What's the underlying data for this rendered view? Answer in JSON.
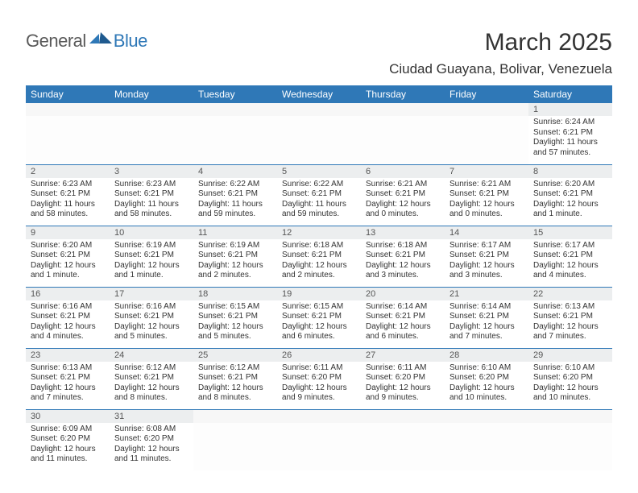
{
  "brand": {
    "part1": "General",
    "part2": "Blue"
  },
  "title": "March 2025",
  "location": "Ciudad Guayana, Bolivar, Venezuela",
  "colors": {
    "header_bg": "#2f78b7",
    "header_fg": "#ffffff",
    "daynum_bg": "#eceeef",
    "border": "#2f78b7",
    "logo_gray": "#5a5a5a",
    "logo_blue": "#2f78b7"
  },
  "weekdays": [
    "Sunday",
    "Monday",
    "Tuesday",
    "Wednesday",
    "Thursday",
    "Friday",
    "Saturday"
  ],
  "weeks": [
    [
      {
        "n": "",
        "empty": true
      },
      {
        "n": "",
        "empty": true
      },
      {
        "n": "",
        "empty": true
      },
      {
        "n": "",
        "empty": true
      },
      {
        "n": "",
        "empty": true
      },
      {
        "n": "",
        "empty": true
      },
      {
        "n": "1",
        "sr": "Sunrise: 6:24 AM",
        "ss": "Sunset: 6:21 PM",
        "dl": "Daylight: 11 hours and 57 minutes."
      }
    ],
    [
      {
        "n": "2",
        "sr": "Sunrise: 6:23 AM",
        "ss": "Sunset: 6:21 PM",
        "dl": "Daylight: 11 hours and 58 minutes."
      },
      {
        "n": "3",
        "sr": "Sunrise: 6:23 AM",
        "ss": "Sunset: 6:21 PM",
        "dl": "Daylight: 11 hours and 58 minutes."
      },
      {
        "n": "4",
        "sr": "Sunrise: 6:22 AM",
        "ss": "Sunset: 6:21 PM",
        "dl": "Daylight: 11 hours and 59 minutes."
      },
      {
        "n": "5",
        "sr": "Sunrise: 6:22 AM",
        "ss": "Sunset: 6:21 PM",
        "dl": "Daylight: 11 hours and 59 minutes."
      },
      {
        "n": "6",
        "sr": "Sunrise: 6:21 AM",
        "ss": "Sunset: 6:21 PM",
        "dl": "Daylight: 12 hours and 0 minutes."
      },
      {
        "n": "7",
        "sr": "Sunrise: 6:21 AM",
        "ss": "Sunset: 6:21 PM",
        "dl": "Daylight: 12 hours and 0 minutes."
      },
      {
        "n": "8",
        "sr": "Sunrise: 6:20 AM",
        "ss": "Sunset: 6:21 PM",
        "dl": "Daylight: 12 hours and 1 minute."
      }
    ],
    [
      {
        "n": "9",
        "sr": "Sunrise: 6:20 AM",
        "ss": "Sunset: 6:21 PM",
        "dl": "Daylight: 12 hours and 1 minute."
      },
      {
        "n": "10",
        "sr": "Sunrise: 6:19 AM",
        "ss": "Sunset: 6:21 PM",
        "dl": "Daylight: 12 hours and 1 minute."
      },
      {
        "n": "11",
        "sr": "Sunrise: 6:19 AM",
        "ss": "Sunset: 6:21 PM",
        "dl": "Daylight: 12 hours and 2 minutes."
      },
      {
        "n": "12",
        "sr": "Sunrise: 6:18 AM",
        "ss": "Sunset: 6:21 PM",
        "dl": "Daylight: 12 hours and 2 minutes."
      },
      {
        "n": "13",
        "sr": "Sunrise: 6:18 AM",
        "ss": "Sunset: 6:21 PM",
        "dl": "Daylight: 12 hours and 3 minutes."
      },
      {
        "n": "14",
        "sr": "Sunrise: 6:17 AM",
        "ss": "Sunset: 6:21 PM",
        "dl": "Daylight: 12 hours and 3 minutes."
      },
      {
        "n": "15",
        "sr": "Sunrise: 6:17 AM",
        "ss": "Sunset: 6:21 PM",
        "dl": "Daylight: 12 hours and 4 minutes."
      }
    ],
    [
      {
        "n": "16",
        "sr": "Sunrise: 6:16 AM",
        "ss": "Sunset: 6:21 PM",
        "dl": "Daylight: 12 hours and 4 minutes."
      },
      {
        "n": "17",
        "sr": "Sunrise: 6:16 AM",
        "ss": "Sunset: 6:21 PM",
        "dl": "Daylight: 12 hours and 5 minutes."
      },
      {
        "n": "18",
        "sr": "Sunrise: 6:15 AM",
        "ss": "Sunset: 6:21 PM",
        "dl": "Daylight: 12 hours and 5 minutes."
      },
      {
        "n": "19",
        "sr": "Sunrise: 6:15 AM",
        "ss": "Sunset: 6:21 PM",
        "dl": "Daylight: 12 hours and 6 minutes."
      },
      {
        "n": "20",
        "sr": "Sunrise: 6:14 AM",
        "ss": "Sunset: 6:21 PM",
        "dl": "Daylight: 12 hours and 6 minutes."
      },
      {
        "n": "21",
        "sr": "Sunrise: 6:14 AM",
        "ss": "Sunset: 6:21 PM",
        "dl": "Daylight: 12 hours and 7 minutes."
      },
      {
        "n": "22",
        "sr": "Sunrise: 6:13 AM",
        "ss": "Sunset: 6:21 PM",
        "dl": "Daylight: 12 hours and 7 minutes."
      }
    ],
    [
      {
        "n": "23",
        "sr": "Sunrise: 6:13 AM",
        "ss": "Sunset: 6:21 PM",
        "dl": "Daylight: 12 hours and 7 minutes."
      },
      {
        "n": "24",
        "sr": "Sunrise: 6:12 AM",
        "ss": "Sunset: 6:21 PM",
        "dl": "Daylight: 12 hours and 8 minutes."
      },
      {
        "n": "25",
        "sr": "Sunrise: 6:12 AM",
        "ss": "Sunset: 6:21 PM",
        "dl": "Daylight: 12 hours and 8 minutes."
      },
      {
        "n": "26",
        "sr": "Sunrise: 6:11 AM",
        "ss": "Sunset: 6:20 PM",
        "dl": "Daylight: 12 hours and 9 minutes."
      },
      {
        "n": "27",
        "sr": "Sunrise: 6:11 AM",
        "ss": "Sunset: 6:20 PM",
        "dl": "Daylight: 12 hours and 9 minutes."
      },
      {
        "n": "28",
        "sr": "Sunrise: 6:10 AM",
        "ss": "Sunset: 6:20 PM",
        "dl": "Daylight: 12 hours and 10 minutes."
      },
      {
        "n": "29",
        "sr": "Sunrise: 6:10 AM",
        "ss": "Sunset: 6:20 PM",
        "dl": "Daylight: 12 hours and 10 minutes."
      }
    ],
    [
      {
        "n": "30",
        "sr": "Sunrise: 6:09 AM",
        "ss": "Sunset: 6:20 PM",
        "dl": "Daylight: 12 hours and 11 minutes."
      },
      {
        "n": "31",
        "sr": "Sunrise: 6:08 AM",
        "ss": "Sunset: 6:20 PM",
        "dl": "Daylight: 12 hours and 11 minutes."
      },
      {
        "n": "",
        "empty": true
      },
      {
        "n": "",
        "empty": true
      },
      {
        "n": "",
        "empty": true
      },
      {
        "n": "",
        "empty": true
      },
      {
        "n": "",
        "empty": true
      }
    ]
  ]
}
